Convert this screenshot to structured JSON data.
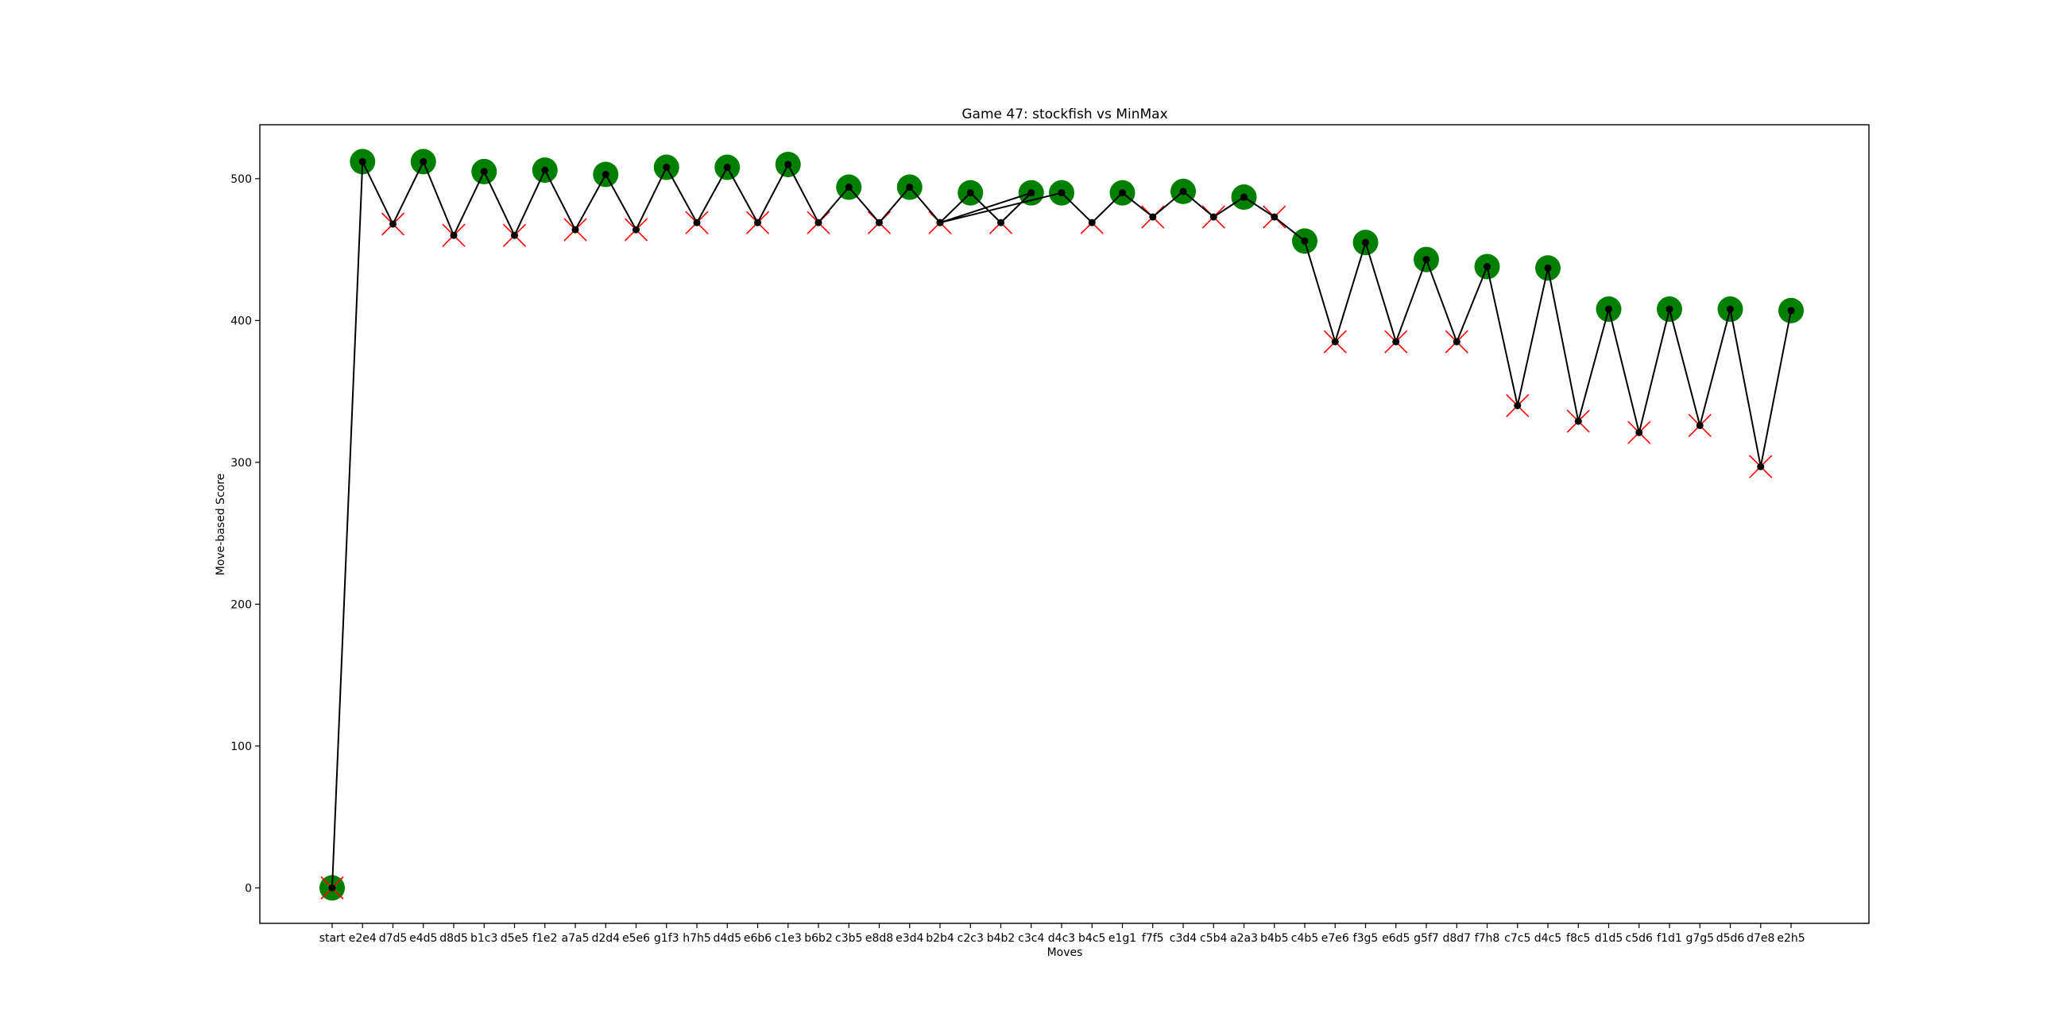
{
  "chart_data": {
    "type": "line",
    "title": "Game 47: stockfish vs MinMax",
    "xlabel": "Moves",
    "ylabel": "Move-based Score",
    "ylim": [
      -25,
      538
    ],
    "yticks": [
      0,
      100,
      200,
      300,
      400,
      500
    ],
    "grid": false,
    "legend": "none",
    "categories": [
      "start",
      "e2e4",
      "d7d5",
      "e4d5",
      "d8d5",
      "b1c3",
      "d5e5",
      "f1e2",
      "a7a5",
      "d2d4",
      "e5e6",
      "g1f3",
      "h7h5",
      "d4d5",
      "e6b6",
      "c1e3",
      "b6b2",
      "c3b5",
      "e8d8",
      "e3d4",
      "b2b4",
      "c2c3",
      "b4b2",
      "c3c4",
      "d4c3",
      "b4c5",
      "e1g1",
      "f7f5",
      "c3d4",
      "c5b4",
      "a2a3",
      "b4b5",
      "c4b5",
      "e7e6",
      "f3g5",
      "e6d5",
      "g5f7",
      "d8d7",
      "f7h8",
      "c7c5",
      "d4c5",
      "f8c5",
      "d1d5",
      "c5d6",
      "f1d1",
      "g7g5",
      "d5d6",
      "d7e8",
      "e2h5"
    ],
    "path": [
      {
        "x": "start",
        "y": 0
      },
      {
        "x": "e2e4",
        "y": 512
      },
      {
        "x": "d7d5",
        "y": 468
      },
      {
        "x": "e4d5",
        "y": 512
      },
      {
        "x": "d8d5",
        "y": 460
      },
      {
        "x": "b1c3",
        "y": 505
      },
      {
        "x": "d5e5",
        "y": 460
      },
      {
        "x": "f1e2",
        "y": 506
      },
      {
        "x": "a7a5",
        "y": 464
      },
      {
        "x": "d2d4",
        "y": 503
      },
      {
        "x": "e5e6",
        "y": 464
      },
      {
        "x": "g1f3",
        "y": 508
      },
      {
        "x": "h7h5",
        "y": 469
      },
      {
        "x": "d4d5",
        "y": 508
      },
      {
        "x": "e6b6",
        "y": 469
      },
      {
        "x": "c1e3",
        "y": 510
      },
      {
        "x": "b6b2",
        "y": 469
      },
      {
        "x": "c3b5",
        "y": 494
      },
      {
        "x": "e8d8",
        "y": 469
      },
      {
        "x": "e3d4",
        "y": 494
      },
      {
        "x": "b2b4",
        "y": 469
      },
      {
        "x": "c2c3",
        "y": 490
      },
      {
        "x": "b4b2",
        "y": 469
      },
      {
        "x": "c3c4",
        "y": 490
      },
      {
        "x": "b2b4",
        "y": 469
      },
      {
        "x": "d4c3",
        "y": 490
      },
      {
        "x": "b4c5",
        "y": 469
      },
      {
        "x": "e1g1",
        "y": 490
      },
      {
        "x": "f7f5",
        "y": 473
      },
      {
        "x": "c3d4",
        "y": 491
      },
      {
        "x": "c5b4",
        "y": 473
      },
      {
        "x": "a2a3",
        "y": 487
      },
      {
        "x": "b4b5",
        "y": 473
      },
      {
        "x": "c4b5",
        "y": 456
      },
      {
        "x": "e7e6",
        "y": 385
      },
      {
        "x": "f3g5",
        "y": 455
      },
      {
        "x": "e6d5",
        "y": 385
      },
      {
        "x": "g5f7",
        "y": 443
      },
      {
        "x": "d8d7",
        "y": 385
      },
      {
        "x": "f7h8",
        "y": 438
      },
      {
        "x": "c7c5",
        "y": 340
      },
      {
        "x": "d4c5",
        "y": 437
      },
      {
        "x": "f8c5",
        "y": 329
      },
      {
        "x": "d1d5",
        "y": 408
      },
      {
        "x": "c5d6",
        "y": 321
      },
      {
        "x": "f1d1",
        "y": 408
      },
      {
        "x": "g7g5",
        "y": 326
      },
      {
        "x": "d5d6",
        "y": 408
      },
      {
        "x": "d7e8",
        "y": 297
      },
      {
        "x": "e2h5",
        "y": 407
      }
    ],
    "markers": {
      "good": {
        "color": "#008000",
        "shape": "circle",
        "x": [
          "start",
          "e2e4",
          "e4d5",
          "b1c3",
          "f1e2",
          "d2d4",
          "g1f3",
          "d4d5",
          "c1e3",
          "c3b5",
          "e3d4",
          "c2c3",
          "c3c4",
          "d4c3",
          "e1g1",
          "c3d4",
          "a2a3",
          "c4b5",
          "f3g5",
          "g5f7",
          "f7h8",
          "d4c5",
          "d1d5",
          "f1d1",
          "d5d6",
          "e2h5"
        ]
      },
      "bad": {
        "color": "#ff0000",
        "shape": "x",
        "x": [
          "start",
          "d7d5",
          "d8d5",
          "d5e5",
          "a7a5",
          "e5e6",
          "h7h5",
          "e6b6",
          "b6b2",
          "e8d8",
          "b2b4",
          "b4b2",
          "b4c5",
          "f7f5",
          "c5b4",
          "b4b5",
          "e7e6",
          "e6d5",
          "d8d7",
          "c7c5",
          "f8c5",
          "c5d6",
          "g7g5",
          "d7e8"
        ]
      }
    },
    "line_color": "#000000",
    "point_color": "#000000"
  }
}
